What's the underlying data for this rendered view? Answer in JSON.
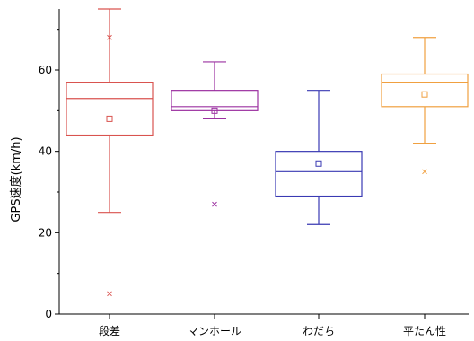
{
  "chart_data": {
    "type": "boxplot",
    "title": "",
    "xlabel": "",
    "ylabel": "GPS速度(km/h)",
    "categories": [
      "段差",
      "マンホール",
      "わだち",
      "平たん性"
    ],
    "ylim": [
      0,
      75
    ],
    "y_ticks": [
      0,
      20,
      40,
      60
    ],
    "y_tick_labels": [
      "0",
      "20",
      "40",
      "60"
    ],
    "grid": false,
    "legend": "none",
    "series": [
      {
        "category": "段差",
        "color": "#d9534f",
        "whisker_low": 25,
        "q1": 44,
        "median": 53,
        "q3": 57,
        "whisker_high": 75,
        "mean": 48,
        "outliers": [
          5
        ],
        "extra_markers": [
          68
        ]
      },
      {
        "category": "マンホール",
        "color": "#9b30a0",
        "whisker_low": 48,
        "q1": 50,
        "median": 51,
        "q3": 55,
        "whisker_high": 62,
        "mean": 50,
        "outliers": [
          27
        ],
        "extra_markers": []
      },
      {
        "category": "わだち",
        "color": "#3a3ab3",
        "whisker_low": 22,
        "q1": 29,
        "median": 35,
        "q3": 40,
        "whisker_high": 55,
        "mean": 37,
        "outliers": [],
        "extra_markers": []
      },
      {
        "category": "平たん性",
        "color": "#f0a040",
        "whisker_low": 42,
        "q1": 51,
        "median": 57,
        "q3": 59,
        "whisker_high": 68,
        "mean": 54,
        "outliers": [
          35
        ],
        "extra_markers": []
      }
    ]
  }
}
